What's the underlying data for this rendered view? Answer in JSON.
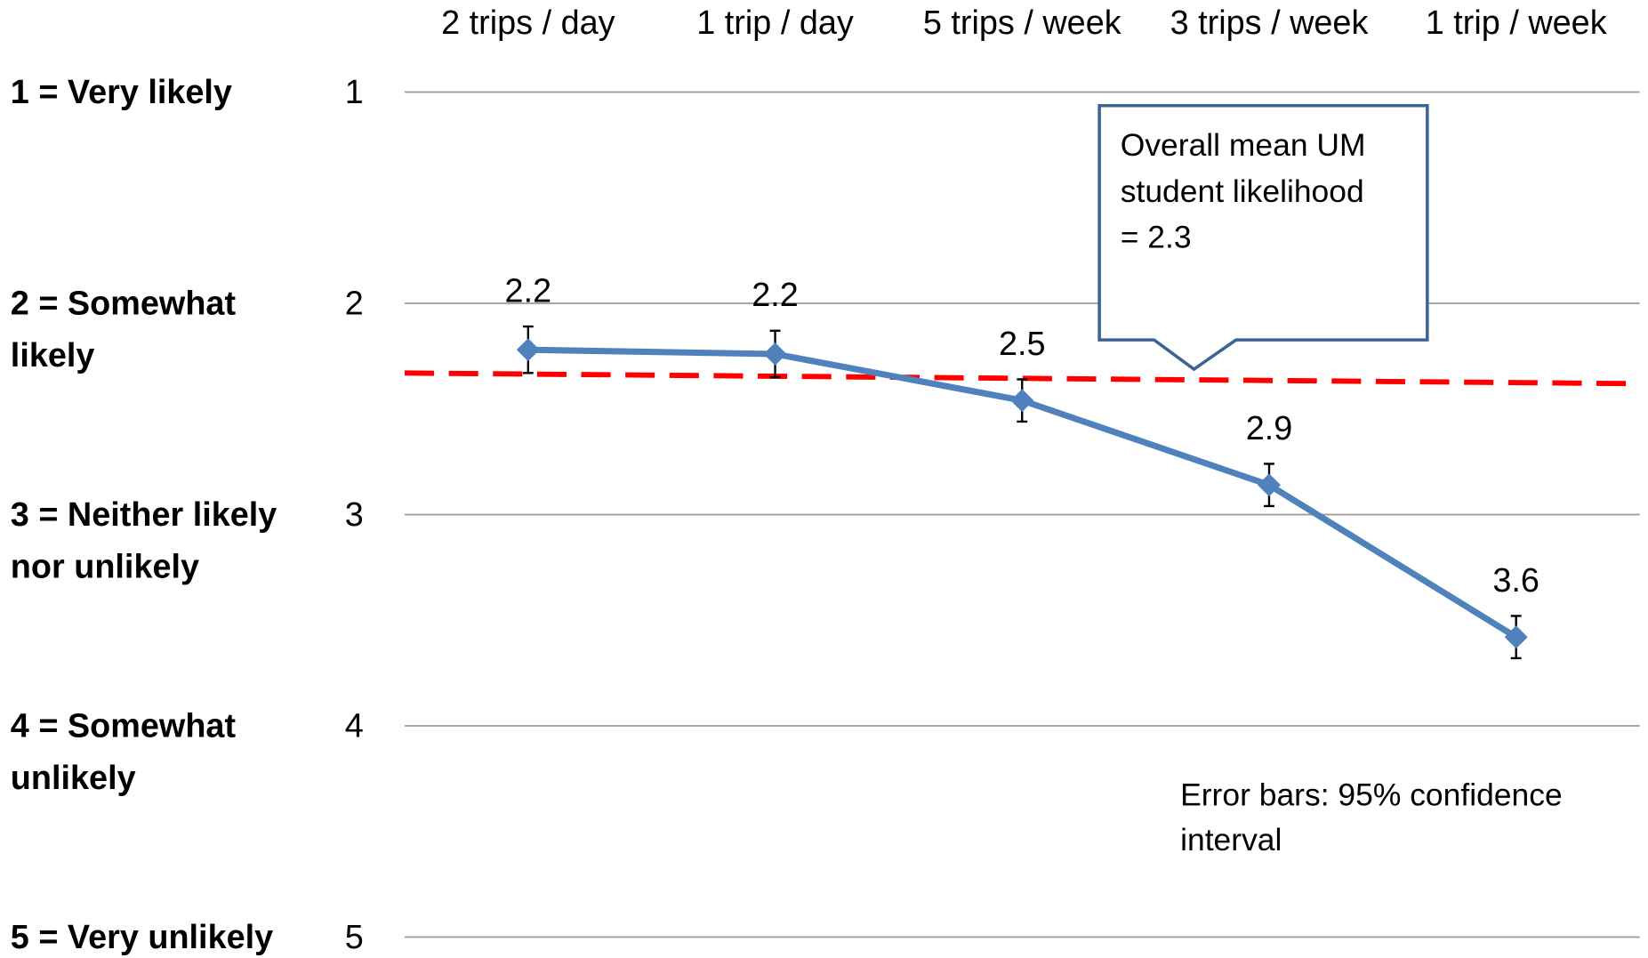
{
  "chart_data": {
    "type": "line",
    "categories": [
      "2 trips / day",
      "1 trip / day",
      "5 trips / week",
      "3 trips / week",
      "1 trip / week"
    ],
    "series": [
      {
        "color": "#4f81bd",
        "values": [
          2.22,
          2.24,
          2.46,
          2.86,
          3.58
        ],
        "value_labels": [
          "2.2",
          "2.2",
          "2.5",
          "2.9",
          "3.6"
        ],
        "errors": [
          0.11,
          0.11,
          0.1,
          0.1,
          0.1
        ]
      }
    ],
    "mean_line": {
      "color": "#ff0000",
      "values": [
        2.33,
        2.38
      ]
    },
    "ylim": [
      1,
      5
    ],
    "y_inverted": true,
    "yticks": [
      1,
      2,
      3,
      4,
      5
    ],
    "y_level_labels": [
      [
        "1 = Very likely"
      ],
      [
        "2 = Somewhat",
        "likely"
      ],
      [
        "3 = Neither likely",
        "nor unlikely"
      ],
      [
        "4 = Somewhat",
        "unlikely"
      ],
      [
        "5 = Very unlikely"
      ]
    ],
    "grid": true,
    "callout": [
      "Overall mean UM",
      "student likelihood",
      "= 2.3"
    ],
    "note": [
      "Error bars: 95% confidence",
      "interval"
    ]
  }
}
